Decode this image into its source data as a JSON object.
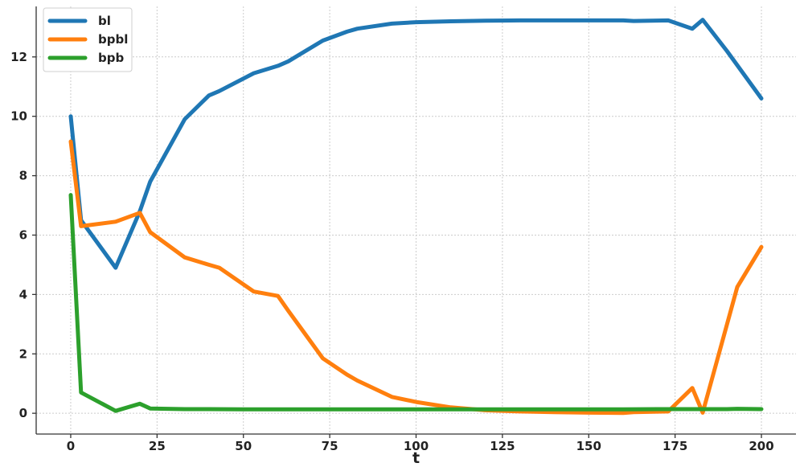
{
  "chart_data": {
    "type": "line",
    "title": "",
    "xlabel": "t",
    "ylabel": "",
    "xlim": [
      -10,
      210
    ],
    "ylim": [
      -0.7,
      13.7
    ],
    "x_ticks": [
      0,
      25,
      50,
      75,
      100,
      125,
      150,
      175,
      200
    ],
    "x_tick_labels": [
      "0",
      "25",
      "50",
      "75",
      "100",
      "125",
      "150",
      "175",
      "200"
    ],
    "y_ticks": [
      0,
      2,
      4,
      6,
      8,
      10,
      12
    ],
    "y_tick_labels": [
      "0",
      "2",
      "4",
      "6",
      "8",
      "10",
      "12"
    ],
    "grid": true,
    "legend_position": "top-left",
    "series": [
      {
        "name": "bl",
        "color": "#1f77b4",
        "x": [
          0,
          3,
          13,
          20,
          23,
          33,
          40,
          43,
          53,
          60,
          63,
          73,
          80,
          83,
          93,
          100,
          110,
          120,
          130,
          140,
          150,
          160,
          163,
          173,
          180,
          183,
          190,
          200
        ],
        "y": [
          10.0,
          6.5,
          4.9,
          6.8,
          7.8,
          9.9,
          10.7,
          10.85,
          11.45,
          11.7,
          11.85,
          12.55,
          12.85,
          12.95,
          13.12,
          13.17,
          13.2,
          13.22,
          13.23,
          13.23,
          13.23,
          13.23,
          13.21,
          13.23,
          12.95,
          13.25,
          12.2,
          10.6
        ]
      },
      {
        "name": "bpbl",
        "color": "#ff7f0e",
        "x": [
          0,
          3,
          13,
          20,
          23,
          33,
          40,
          43,
          53,
          60,
          63,
          73,
          80,
          83,
          93,
          100,
          110,
          120,
          130,
          140,
          150,
          160,
          163,
          173,
          180,
          183,
          193,
          200
        ],
        "y": [
          9.15,
          6.3,
          6.45,
          6.75,
          6.1,
          5.25,
          5.0,
          4.9,
          4.1,
          3.95,
          3.45,
          1.85,
          1.3,
          1.1,
          0.55,
          0.38,
          0.2,
          0.1,
          0.06,
          0.04,
          0.02,
          0.01,
          0.04,
          0.06,
          0.85,
          0.02,
          4.25,
          5.6
        ]
      },
      {
        "name": "bpb",
        "color": "#2ca02c",
        "x": [
          0,
          3,
          13,
          20,
          23,
          33,
          40,
          50,
          60,
          70,
          80,
          90,
          100,
          110,
          120,
          130,
          140,
          150,
          160,
          170,
          180,
          190,
          193,
          200
        ],
        "y": [
          7.35,
          0.7,
          0.08,
          0.32,
          0.16,
          0.14,
          0.14,
          0.13,
          0.13,
          0.13,
          0.13,
          0.13,
          0.13,
          0.13,
          0.13,
          0.13,
          0.13,
          0.13,
          0.13,
          0.14,
          0.14,
          0.14,
          0.15,
          0.14
        ]
      }
    ]
  }
}
